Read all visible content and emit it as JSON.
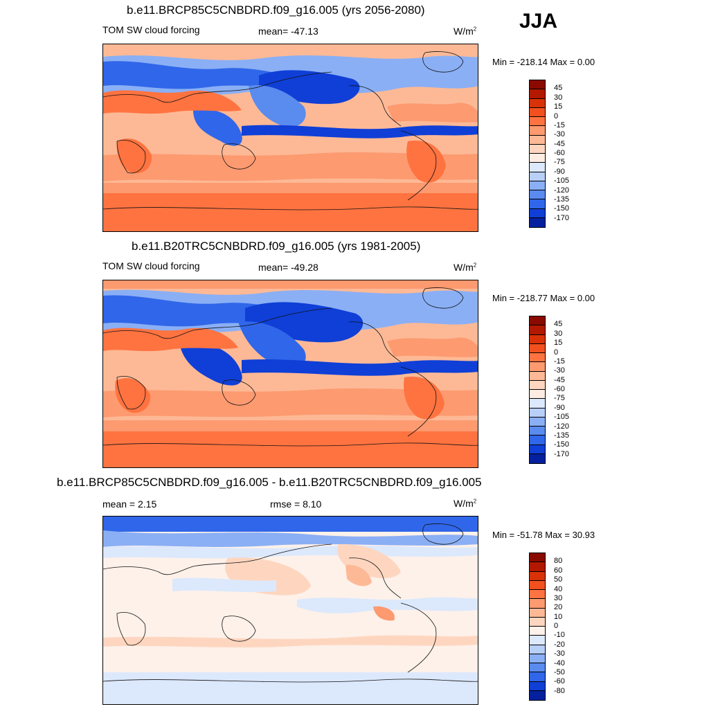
{
  "season": "JJA",
  "panels": [
    {
      "title": "b.e11.BRCP85C5CNBDRD.f09_g16.005 (yrs 2056-2080)",
      "variable": "TOM SW cloud forcing",
      "stat1": "mean= -47.13",
      "units": "W/m",
      "units_exp": "2",
      "minmax": "Min = -218.14 Max =   0.00",
      "levels": [
        "45",
        "30",
        "15",
        "0",
        "-15",
        "-30",
        "-45",
        "-60",
        "-75",
        "-90",
        "-105",
        "-120",
        "-135",
        "-150",
        "-170"
      ],
      "colors": [
        "#8a0a00",
        "#b31800",
        "#d93208",
        "#f2501e",
        "#ff7340",
        "#fd9a70",
        "#fdb996",
        "#fed6bf",
        "#fdece2",
        "#dce8fc",
        "#b8cff8",
        "#8aaff5",
        "#5a8bef",
        "#3066e9",
        "#0f3fd6",
        "#05209e"
      ]
    },
    {
      "title": "b.e11.B20TRC5CNBDRD.f09_g16.005 (yrs 1981-2005)",
      "variable": "TOM SW cloud forcing",
      "stat1": "mean= -49.28",
      "units": "W/m",
      "units_exp": "2",
      "minmax": "Min = -218.77 Max =   0.00",
      "levels": [
        "45",
        "30",
        "15",
        "0",
        "-15",
        "-30",
        "-45",
        "-60",
        "-75",
        "-90",
        "-105",
        "-120",
        "-135",
        "-150",
        "-170"
      ],
      "colors": [
        "#8a0a00",
        "#b31800",
        "#d93208",
        "#f2501e",
        "#ff7340",
        "#fd9a70",
        "#fdb996",
        "#fed6bf",
        "#fdece2",
        "#dce8fc",
        "#b8cff8",
        "#8aaff5",
        "#5a8bef",
        "#3066e9",
        "#0f3fd6",
        "#05209e"
      ]
    },
    {
      "title": "b.e11.BRCP85C5CNBDRD.f09_g16.005 - b.e11.B20TRC5CNBDRD.f09_g16.005",
      "stat1": "mean =   2.15",
      "stat2": "rmse =   8.10",
      "units": "W/m",
      "units_exp": "2",
      "minmax": "Min = -51.78 Max =  30.93",
      "levels": [
        "80",
        "60",
        "50",
        "40",
        "30",
        "20",
        "10",
        "0",
        "-10",
        "-20",
        "-30",
        "-40",
        "-50",
        "-60",
        "-80"
      ],
      "colors": [
        "#8a0a00",
        "#b31800",
        "#d93208",
        "#f2501e",
        "#ff7340",
        "#fd9a70",
        "#fdb996",
        "#fed6bf",
        "#fdf1ea",
        "#dce8fc",
        "#b8cff8",
        "#8aaff5",
        "#5a8bef",
        "#3066e9",
        "#0f3fd6",
        "#05209e"
      ]
    }
  ]
}
